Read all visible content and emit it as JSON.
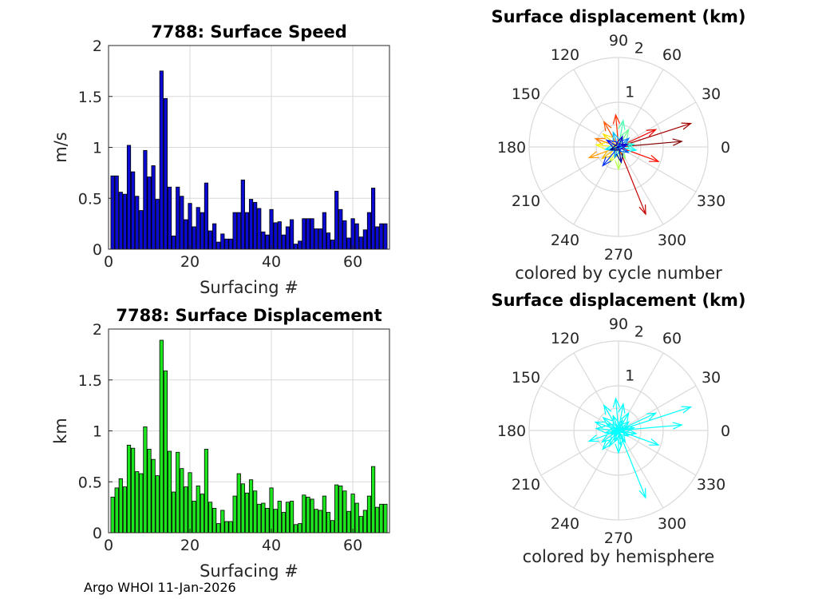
{
  "footer": {
    "text": "Argo WHOI 11-Jan-2026"
  },
  "colors": {
    "speed_bar": "#0a0ad2",
    "displacement_bar": "#1ee61e",
    "hemisphere": "#00ffff",
    "grid": "#d9d9d9"
  },
  "chart_data": [
    {
      "id": "speed",
      "type": "bar",
      "title": "7788: Surface Speed",
      "xlabel": "Surfacing #",
      "ylabel": "m/s",
      "xlim": [
        0,
        69
      ],
      "ylim": [
        0,
        2
      ],
      "xticks": [
        "0",
        "20",
        "40",
        "60"
      ],
      "yticks": [
        "0",
        "0.5",
        "1",
        "1.5",
        "2"
      ],
      "x": [
        1,
        2,
        3,
        4,
        5,
        6,
        7,
        8,
        9,
        10,
        11,
        12,
        13,
        14,
        15,
        16,
        17,
        18,
        19,
        20,
        21,
        22,
        23,
        24,
        25,
        26,
        27,
        28,
        29,
        30,
        31,
        32,
        33,
        34,
        35,
        36,
        37,
        38,
        39,
        40,
        41,
        42,
        43,
        44,
        45,
        46,
        47,
        48,
        49,
        50,
        51,
        52,
        53,
        54,
        55,
        56,
        57,
        58,
        59,
        60,
        61,
        62,
        63,
        64,
        65,
        66,
        67,
        68
      ],
      "values": [
        0.72,
        0.72,
        0.56,
        0.54,
        1.02,
        0.76,
        0.52,
        0.38,
        0.97,
        0.71,
        0.82,
        0.49,
        1.75,
        1.48,
        0.61,
        0.13,
        0.61,
        0.52,
        0.29,
        0.45,
        0.22,
        0.41,
        0.36,
        0.65,
        0.18,
        0.25,
        0.07,
        0.15,
        0.1,
        0.1,
        0.36,
        0.36,
        0.68,
        0.36,
        0.49,
        0.46,
        0.4,
        0.17,
        0.14,
        0.39,
        0.26,
        0.27,
        0.14,
        0.22,
        0.29,
        0.05,
        0.08,
        0.3,
        0.3,
        0.3,
        0.2,
        0.2,
        0.36,
        0.16,
        0.09,
        0.57,
        0.39,
        0.28,
        0.11,
        0.3,
        0.25,
        0.12,
        0.19,
        0.36,
        0.6,
        0.22,
        0.25,
        0.25
      ]
    },
    {
      "id": "displacement",
      "type": "bar",
      "title": "7788: Surface Displacement",
      "xlabel": "Surfacing #",
      "ylabel": "km",
      "xlim": [
        0,
        69
      ],
      "ylim": [
        0,
        2
      ],
      "xticks": [
        "0",
        "20",
        "40",
        "60"
      ],
      "yticks": [
        "0",
        "0.5",
        "1",
        "1.5",
        "2"
      ],
      "x": [
        1,
        2,
        3,
        4,
        5,
        6,
        7,
        8,
        9,
        10,
        11,
        12,
        13,
        14,
        15,
        16,
        17,
        18,
        19,
        20,
        21,
        22,
        23,
        24,
        25,
        26,
        27,
        28,
        29,
        30,
        31,
        32,
        33,
        34,
        35,
        36,
        37,
        38,
        39,
        40,
        41,
        42,
        43,
        44,
        45,
        46,
        47,
        48,
        49,
        50,
        51,
        52,
        53,
        54,
        55,
        56,
        57,
        58,
        59,
        60,
        61,
        62,
        63,
        64,
        65,
        66,
        67,
        68
      ],
      "values": [
        0.35,
        0.44,
        0.53,
        0.45,
        0.86,
        0.83,
        0.6,
        0.58,
        1.04,
        0.82,
        0.72,
        0.56,
        1.89,
        1.59,
        0.8,
        0.4,
        0.79,
        0.63,
        0.45,
        0.59,
        0.31,
        0.46,
        0.38,
        0.82,
        0.3,
        0.24,
        0.09,
        0.22,
        0.11,
        0.11,
        0.36,
        0.58,
        0.48,
        0.39,
        0.52,
        0.41,
        0.28,
        0.29,
        0.24,
        0.44,
        0.23,
        0.31,
        0.2,
        0.3,
        0.31,
        0.08,
        0.09,
        0.37,
        0.35,
        0.33,
        0.23,
        0.22,
        0.36,
        0.2,
        0.12,
        0.47,
        0.46,
        0.41,
        0.21,
        0.38,
        0.29,
        0.16,
        0.22,
        0.36,
        0.65,
        0.25,
        0.28,
        0.28
      ]
    },
    {
      "id": "polar-cycle",
      "type": "polar",
      "title": "Surface displacement (km)",
      "caption": "colored by cycle number",
      "rlim": [
        0,
        2
      ],
      "radial_ticks": [
        "1",
        "2"
      ],
      "angle_labels": [
        "0",
        "30",
        "60",
        "90",
        "120",
        "150",
        "180",
        "210",
        "240",
        "270",
        "300",
        "330"
      ],
      "color_mode": "cycle",
      "vectors": [
        {
          "angle": 5,
          "r": 1.42
        },
        {
          "angle": 18,
          "r": 1.7
        },
        {
          "angle": -68,
          "r": 1.62
        },
        {
          "angle": 25,
          "r": 0.92
        },
        {
          "angle": -20,
          "r": 0.95
        },
        {
          "angle": 95,
          "r": 0.72
        },
        {
          "angle": 120,
          "r": 0.65
        },
        {
          "angle": 160,
          "r": 0.55
        },
        {
          "angle": 200,
          "r": 0.7
        },
        {
          "angle": 215,
          "r": 0.45
        },
        {
          "angle": 140,
          "r": 0.45
        },
        {
          "angle": 175,
          "r": 0.5
        },
        {
          "angle": 240,
          "r": 0.4
        },
        {
          "angle": 270,
          "r": 0.5
        },
        {
          "angle": 300,
          "r": 0.3
        },
        {
          "angle": 60,
          "r": 0.45
        },
        {
          "angle": 80,
          "r": 0.6
        },
        {
          "angle": 10,
          "r": 0.35
        },
        {
          "angle": 350,
          "r": 0.4
        },
        {
          "angle": 190,
          "r": 0.3
        },
        {
          "angle": 110,
          "r": 0.35
        },
        {
          "angle": 250,
          "r": 0.25
        },
        {
          "angle": 40,
          "r": 0.3
        },
        {
          "angle": 330,
          "r": 0.25
        },
        {
          "angle": 230,
          "r": 0.55
        },
        {
          "angle": 150,
          "r": 0.3
        },
        {
          "angle": 15,
          "r": 0.2
        },
        {
          "angle": 70,
          "r": 0.25
        },
        {
          "angle": 280,
          "r": 0.35
        },
        {
          "angle": 200,
          "r": 0.2
        }
      ]
    },
    {
      "id": "polar-hemisphere",
      "type": "polar",
      "title": "Surface displacement (km)",
      "caption": "colored by hemisphere",
      "rlim": [
        0,
        2
      ],
      "radial_ticks": [
        "1",
        "2"
      ],
      "angle_labels": [
        "0",
        "30",
        "60",
        "90",
        "120",
        "150",
        "180",
        "210",
        "240",
        "270",
        "300",
        "330"
      ],
      "color_mode": "hemisphere",
      "vectors": [
        {
          "angle": 5,
          "r": 1.42
        },
        {
          "angle": 18,
          "r": 1.7
        },
        {
          "angle": -68,
          "r": 1.62
        },
        {
          "angle": 25,
          "r": 0.92
        },
        {
          "angle": -20,
          "r": 0.95
        },
        {
          "angle": 95,
          "r": 0.72
        },
        {
          "angle": 120,
          "r": 0.65
        },
        {
          "angle": 160,
          "r": 0.55
        },
        {
          "angle": 200,
          "r": 0.7
        },
        {
          "angle": 215,
          "r": 0.45
        },
        {
          "angle": 140,
          "r": 0.45
        },
        {
          "angle": 175,
          "r": 0.5
        },
        {
          "angle": 240,
          "r": 0.4
        },
        {
          "angle": 270,
          "r": 0.5
        },
        {
          "angle": 300,
          "r": 0.3
        },
        {
          "angle": 60,
          "r": 0.45
        },
        {
          "angle": 80,
          "r": 0.6
        },
        {
          "angle": 10,
          "r": 0.35
        },
        {
          "angle": 350,
          "r": 0.4
        },
        {
          "angle": 190,
          "r": 0.3
        },
        {
          "angle": 110,
          "r": 0.35
        },
        {
          "angle": 250,
          "r": 0.25
        },
        {
          "angle": 40,
          "r": 0.3
        },
        {
          "angle": 330,
          "r": 0.25
        },
        {
          "angle": 230,
          "r": 0.55
        },
        {
          "angle": 150,
          "r": 0.3
        },
        {
          "angle": 15,
          "r": 0.2
        },
        {
          "angle": 70,
          "r": 0.25
        },
        {
          "angle": 280,
          "r": 0.35
        },
        {
          "angle": 200,
          "r": 0.2
        }
      ]
    }
  ]
}
